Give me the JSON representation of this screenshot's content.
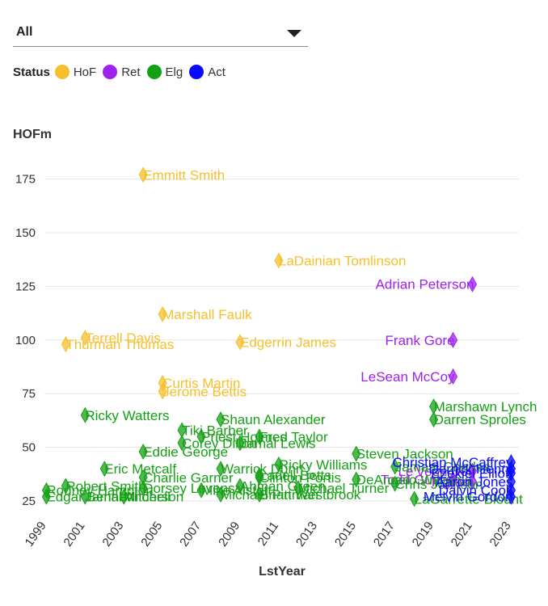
{
  "filter": {
    "selected": "All"
  },
  "legend": {
    "title": "Status",
    "items": [
      {
        "key": "HoF",
        "label": "HoF",
        "color": "#f5c02c"
      },
      {
        "key": "Ret",
        "label": "Ret",
        "color": "#a020f0"
      },
      {
        "key": "Elg",
        "label": "Elg",
        "color": "#14a014"
      },
      {
        "key": "Act",
        "label": "Act",
        "color": "#0a0aff"
      }
    ]
  },
  "chart_data": {
    "type": "scatter",
    "xlabel": "LstYear",
    "ylabel": "HOFm",
    "xlim": [
      1998.9,
      2023.4
    ],
    "ylim": [
      22,
      185
    ],
    "xticks": [
      "1999",
      "2001",
      "2003",
      "2005",
      "2007",
      "2009",
      "2011",
      "2013",
      "2015",
      "2017",
      "2019",
      "2021",
      "2023"
    ],
    "yticks": [
      25,
      50,
      75,
      100,
      125,
      150,
      175
    ],
    "grid": "horizontal",
    "series": [
      {
        "status": "HoF",
        "points": [
          {
            "name": "Emmitt Smith",
            "x": 2004,
            "y": 177
          },
          {
            "name": "LaDainian Tomlinson",
            "x": 2011,
            "y": 137
          },
          {
            "name": "Marshall Faulk",
            "x": 2005,
            "y": 112
          },
          {
            "name": "Terrell Davis",
            "x": 2001,
            "y": 101
          },
          {
            "name": "Thurman Thomas",
            "x": 2000,
            "y": 98
          },
          {
            "name": "Edgerrin James",
            "x": 2009,
            "y": 99
          },
          {
            "name": "Curtis Martin",
            "x": 2005,
            "y": 80
          },
          {
            "name": "Jerome Bettis",
            "x": 2005,
            "y": 76
          }
        ]
      },
      {
        "status": "Ret",
        "points": [
          {
            "name": "Adrian Peterson",
            "x": 2021,
            "y": 126
          },
          {
            "name": "Frank Gore",
            "x": 2020,
            "y": 100
          },
          {
            "name": "LeSean McCoy",
            "x": 2020,
            "y": 83
          },
          {
            "name": "Le'Veon Bell",
            "x": 2021,
            "y": 39
          },
          {
            "name": "Todd Gurley",
            "x": 2020,
            "y": 35
          },
          {
            "name": "Ingram",
            "x": 2021,
            "y": 34
          }
        ]
      },
      {
        "status": "Elg",
        "points": [
          {
            "name": "Ricky Watters",
            "x": 2001,
            "y": 65
          },
          {
            "name": "Marshawn Lynch",
            "x": 2019,
            "y": 69
          },
          {
            "name": "Darren Sproles",
            "x": 2019,
            "y": 63
          },
          {
            "name": "Shaun Alexander",
            "x": 2008,
            "y": 63
          },
          {
            "name": "Tiki Barber",
            "x": 2006,
            "y": 58
          },
          {
            "name": "Priest Holmes",
            "x": 2007,
            "y": 55
          },
          {
            "name": "Fred Taylor",
            "x": 2010,
            "y": 55
          },
          {
            "name": "Corey Dillon",
            "x": 2006,
            "y": 52
          },
          {
            "name": "Jamal Lewis",
            "x": 2009,
            "y": 52
          },
          {
            "name": "Eddie George",
            "x": 2004,
            "y": 48
          },
          {
            "name": "Steven Jackson",
            "x": 2015,
            "y": 47
          },
          {
            "name": "Eric Metcalf",
            "x": 2002,
            "y": 40
          },
          {
            "name": "Ricky Williams",
            "x": 2011,
            "y": 42
          },
          {
            "name": "Warrick Dunn",
            "x": 2008,
            "y": 40
          },
          {
            "name": "Jamaal Charles",
            "x": 2017,
            "y": 41
          },
          {
            "name": "Ladell Betts",
            "x": 2010,
            "y": 37
          },
          {
            "name": "Clinton Portis",
            "x": 2010,
            "y": 36
          },
          {
            "name": "DeAngelo Williams",
            "x": 2015,
            "y": 35
          },
          {
            "name": "Charlie Garner",
            "x": 2004,
            "y": 36
          },
          {
            "name": "Robert Smith",
            "x": 2000,
            "y": 32
          },
          {
            "name": "Ahman Green",
            "x": 2009,
            "y": 32
          },
          {
            "name": "Dorsey Levens",
            "x": 2004,
            "y": 31
          },
          {
            "name": "Rodney Hampton",
            "x": 1999,
            "y": 30
          },
          {
            "name": "Mike Alstott",
            "x": 2007,
            "y": 30
          },
          {
            "name": "Michael Turner",
            "x": 2012,
            "y": 31
          },
          {
            "name": "Chris Johnson",
            "x": 2017,
            "y": 33
          },
          {
            "name": "Edgar Bennett",
            "x": 1999,
            "y": 27
          },
          {
            "name": "Jamal Anderson",
            "x": 2001,
            "y": 27
          },
          {
            "name": "Brian Westbrook",
            "x": 2010,
            "y": 28
          },
          {
            "name": "Mitchell",
            "x": 2003,
            "y": 27
          },
          {
            "name": "Michael Pittman",
            "x": 2008,
            "y": 28
          },
          {
            "name": "LaGarrette Blount",
            "x": 2018,
            "y": 26
          }
        ]
      },
      {
        "status": "Act",
        "points": [
          {
            "name": "Christian McCaffrey",
            "x": 2023,
            "y": 43
          },
          {
            "name": "Ezekiel Elliott",
            "x": 2023,
            "y": 38
          },
          {
            "name": "Dalvin Cook",
            "x": 2023,
            "y": 30
          },
          {
            "name": "Melvin Gordon",
            "x": 2023,
            "y": 27
          },
          {
            "name": "Derrick Henry",
            "x": 2023,
            "y": 40
          },
          {
            "name": "Aaron Jones",
            "x": 2023,
            "y": 34
          }
        ]
      }
    ]
  }
}
